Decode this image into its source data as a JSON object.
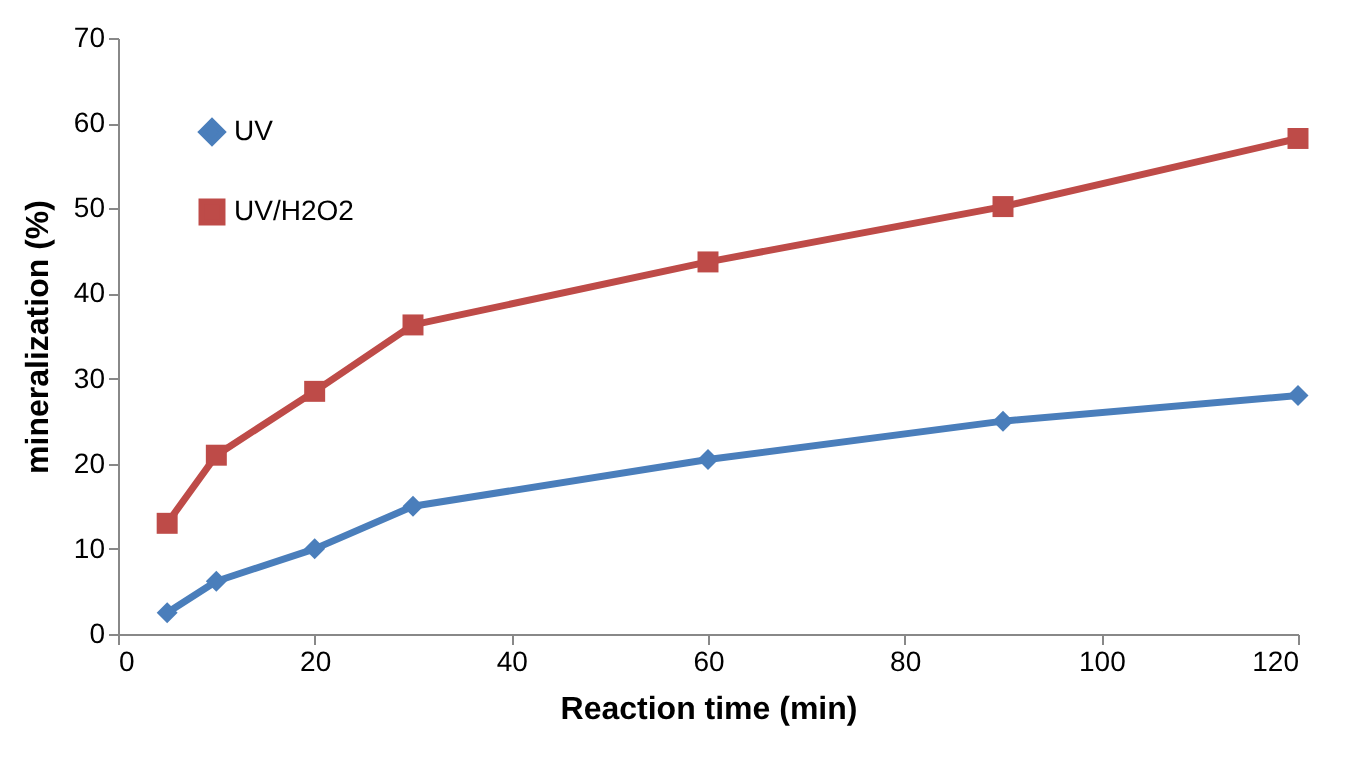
{
  "chart_data": {
    "type": "line",
    "xlabel": "Reaction time (min)",
    "ylabel": "mineralization (%)",
    "x": [
      5,
      10,
      20,
      30,
      60,
      90,
      120
    ],
    "series": [
      {
        "name": "UV",
        "color": "#4a7ebb",
        "marker": "diamond",
        "values": [
          2.5,
          6.2,
          10,
          15,
          20.5,
          25,
          28
        ]
      },
      {
        "name": "UV/H2O2",
        "color": "#be4b48",
        "marker": "square",
        "values": [
          13,
          21,
          28.5,
          36.3,
          43.7,
          50.2,
          58.2
        ]
      }
    ],
    "xlim": [
      0,
      120
    ],
    "xticks": [
      0,
      20,
      40,
      60,
      80,
      100,
      120
    ],
    "ylim": [
      0,
      70
    ],
    "yticks": [
      0,
      10,
      20,
      30,
      40,
      50,
      60,
      70
    ],
    "grid": false,
    "legend": "top left",
    "line_style": "solid"
  }
}
